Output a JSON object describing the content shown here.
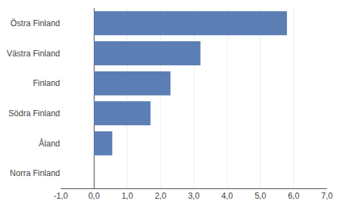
{
  "chart_data": {
    "type": "bar",
    "orientation": "horizontal",
    "categories": [
      "Östra Finland",
      "Västra Finland",
      "Finland",
      "Södra Finland",
      "Åland",
      "Norra Finland"
    ],
    "values": [
      5.8,
      3.2,
      2.3,
      1.7,
      0.55,
      0.0
    ],
    "color": "#5b7fb5",
    "xlim": [
      -1.0,
      7.0
    ],
    "xticks": [
      {
        "value": -1.0,
        "label": "-1,0"
      },
      {
        "value": 0.0,
        "label": "0,0"
      },
      {
        "value": 1.0,
        "label": "1,0"
      },
      {
        "value": 2.0,
        "label": "2,0"
      },
      {
        "value": 3.0,
        "label": "3,0"
      },
      {
        "value": 4.0,
        "label": "4,0"
      },
      {
        "value": 5.0,
        "label": "5,0"
      },
      {
        "value": 6.0,
        "label": "6,0"
      },
      {
        "value": 7.0,
        "label": "7,0"
      }
    ],
    "grid": true
  }
}
